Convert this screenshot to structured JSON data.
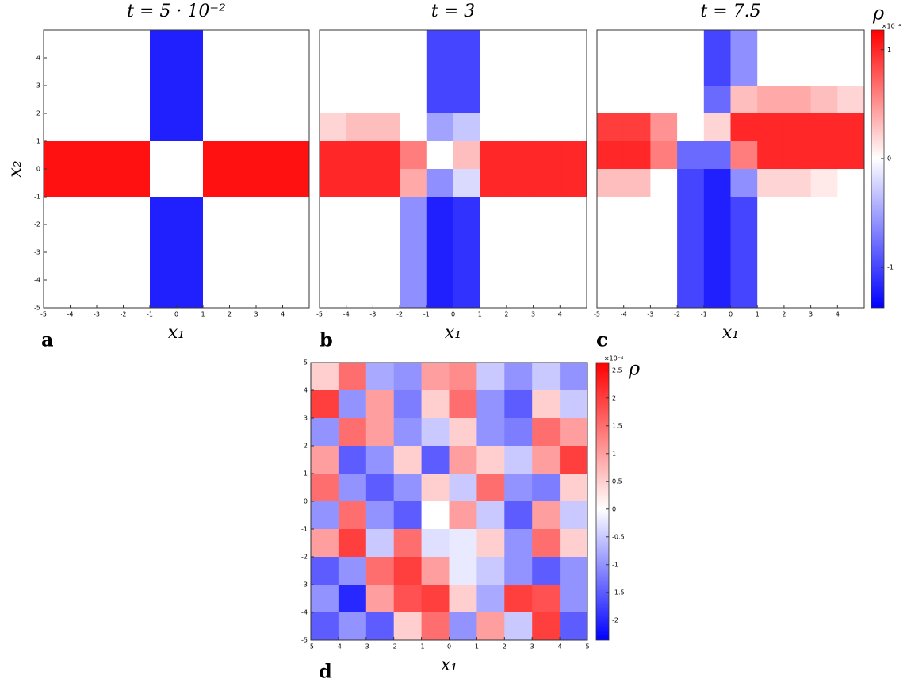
{
  "chart_data": [
    {
      "type": "heatmap",
      "panel": "a",
      "title": "t = 5 · 10⁻²",
      "xlabel": "x₁",
      "ylabel": "x₂",
      "xlim": [
        -5,
        5
      ],
      "ylim": [
        -5,
        5
      ],
      "xticks": [
        -5,
        -4,
        -3,
        -2,
        -1,
        0,
        1,
        2,
        3,
        4
      ],
      "yticks": [
        -5,
        -4,
        -3,
        -2,
        -1,
        0,
        1,
        2,
        3,
        4
      ],
      "z": [
        [
          0,
          0,
          0,
          0,
          -1.2,
          -1.2,
          0,
          0,
          0,
          0
        ],
        [
          0,
          0,
          0,
          0,
          -1.2,
          -1.2,
          0,
          0,
          0,
          0
        ],
        [
          0,
          0,
          0,
          0,
          -1.2,
          -1.2,
          0,
          0,
          0,
          0
        ],
        [
          0,
          0,
          0,
          0,
          -1.2,
          -1.2,
          0,
          0,
          0,
          0
        ],
        [
          1.1,
          1.1,
          1.1,
          1.1,
          0,
          0,
          1.1,
          1.1,
          1.1,
          1.1
        ],
        [
          1.1,
          1.1,
          1.1,
          1.1,
          0,
          0,
          1.1,
          1.1,
          1.1,
          1.1
        ],
        [
          0,
          0,
          0,
          0,
          -1.2,
          -1.2,
          0,
          0,
          0,
          0
        ],
        [
          0,
          0,
          0,
          0,
          -1.2,
          -1.2,
          0,
          0,
          0,
          0
        ],
        [
          0,
          0,
          0,
          0,
          -1.2,
          -1.2,
          0,
          0,
          0,
          0
        ],
        [
          0,
          0,
          0,
          0,
          -1.2,
          -1.2,
          0,
          0,
          0,
          0
        ]
      ]
    },
    {
      "type": "heatmap",
      "panel": "b",
      "title": "t = 3",
      "xlabel": "x₁",
      "xlim": [
        -5,
        5
      ],
      "ylim": [
        -5,
        5
      ],
      "xticks": [
        -5,
        -4,
        -3,
        -2,
        -1,
        0,
        1,
        2,
        3,
        4
      ],
      "z": [
        [
          0,
          0,
          0,
          0,
          -1,
          -1,
          0,
          0,
          0,
          0
        ],
        [
          0,
          0,
          0,
          0,
          -1,
          -1,
          0,
          0,
          0,
          0
        ],
        [
          0,
          0,
          0,
          0,
          -1,
          -1,
          0,
          0,
          0,
          0
        ],
        [
          0.2,
          0.3,
          0.3,
          0,
          -0.5,
          -0.3,
          0,
          0,
          0,
          0
        ],
        [
          1,
          1,
          1,
          0.6,
          0,
          0.3,
          1,
          1,
          1,
          1
        ],
        [
          1,
          1,
          1,
          0.4,
          -0.6,
          -0.2,
          1,
          1,
          1,
          1
        ],
        [
          0,
          0,
          0,
          -0.6,
          -1.2,
          -1.1,
          0,
          0,
          0,
          0
        ],
        [
          0,
          0,
          0,
          -0.6,
          -1.2,
          -1.1,
          0,
          0,
          0,
          0
        ],
        [
          0,
          0,
          0,
          -0.6,
          -1.2,
          -1.1,
          0,
          0,
          0,
          0
        ],
        [
          0,
          0,
          0,
          -0.6,
          -1.2,
          -1.1,
          0,
          0,
          0,
          0
        ]
      ]
    },
    {
      "type": "heatmap",
      "panel": "c",
      "title": "t = 7.5",
      "xlabel": "x₁",
      "xlim": [
        -5,
        5
      ],
      "ylim": [
        -5,
        5
      ],
      "xticks": [
        -5,
        -4,
        -3,
        -2,
        -1,
        0,
        1,
        2,
        3,
        4
      ],
      "z": [
        [
          0,
          0,
          0,
          0,
          -1,
          -0.6,
          0,
          0,
          0,
          0
        ],
        [
          0,
          0,
          0,
          0,
          -1,
          -0.6,
          0,
          0,
          0,
          0
        ],
        [
          0,
          0,
          0,
          0,
          -0.8,
          0.3,
          0.4,
          0.4,
          0.3,
          0.2
        ],
        [
          0.9,
          0.9,
          0.5,
          0,
          0.2,
          1,
          1,
          1,
          1,
          1
        ],
        [
          1,
          1,
          0.6,
          -0.8,
          -0.8,
          0.6,
          1,
          1,
          1,
          1
        ],
        [
          0.3,
          0.3,
          0,
          -1,
          -1.2,
          -0.6,
          0.2,
          0.2,
          0.1,
          0
        ],
        [
          0,
          0,
          0,
          -1,
          -1.2,
          -1,
          0,
          0,
          0,
          0
        ],
        [
          0,
          0,
          0,
          -1,
          -1.2,
          -1,
          0,
          0,
          0,
          0
        ],
        [
          0,
          0,
          0,
          -1,
          -1.2,
          -1,
          0,
          0,
          0,
          0
        ],
        [
          0,
          0,
          0,
          -1,
          -1.2,
          -1,
          0,
          0,
          0,
          0
        ]
      ],
      "colorbar": {
        "label": "ρ",
        "scale": "×10⁻⁴",
        "clim": [
          -1.37,
          1.18
        ],
        "ticks": [
          1,
          0,
          -1
        ]
      }
    },
    {
      "type": "heatmap",
      "panel": "d",
      "xlabel": "x₁",
      "xlim": [
        -5,
        5
      ],
      "ylim": [
        -5,
        5
      ],
      "xticks": [
        -5,
        -4,
        -3,
        -2,
        -1,
        0,
        1,
        2,
        3,
        4,
        5
      ],
      "yticks": [
        -5,
        -4,
        -3,
        -2,
        -1,
        0,
        1,
        2,
        3,
        4,
        5
      ],
      "z": [
        [
          0.5,
          1.5,
          -0.8,
          -1,
          1,
          1.2,
          -0.5,
          -1,
          -0.5,
          -1
        ],
        [
          2,
          -1,
          1,
          -1.2,
          0.5,
          1.5,
          -1,
          -1.5,
          0.5,
          -0.5
        ],
        [
          -1,
          1.5,
          1,
          -1,
          -0.5,
          0.5,
          -1,
          -1.2,
          1.5,
          1
        ],
        [
          1,
          -1.5,
          -1,
          0.5,
          -1.5,
          1,
          0.5,
          -0.5,
          1,
          2
        ],
        [
          1.5,
          -1,
          -1.5,
          -1,
          0.5,
          -0.5,
          1.5,
          -1,
          -1.2,
          0.5
        ],
        [
          -1,
          1.5,
          -1,
          -1.5,
          0,
          1,
          -0.5,
          -1.5,
          1,
          -0.5
        ],
        [
          1,
          2,
          -0.5,
          1.5,
          -0.3,
          -0.2,
          0.5,
          -1,
          1.5,
          0.5
        ],
        [
          -1.5,
          -1,
          1.5,
          2,
          1,
          -0.2,
          -0.5,
          -1,
          -1.5,
          -1
        ],
        [
          -1,
          -2,
          1,
          1.8,
          2,
          0.5,
          -0.8,
          2,
          1.8,
          -1
        ],
        [
          -1.5,
          -1,
          -1.5,
          0.5,
          1.5,
          -1,
          1,
          -0.5,
          2,
          -1.5
        ]
      ],
      "colorbar": {
        "label": "ρ",
        "scale": "×10⁻⁴",
        "clim": [
          -2.36,
          2.64
        ],
        "ticks": [
          2.5,
          2,
          1.5,
          1,
          0.5,
          0,
          -0.5,
          -1,
          -1.5,
          -2
        ]
      }
    }
  ]
}
